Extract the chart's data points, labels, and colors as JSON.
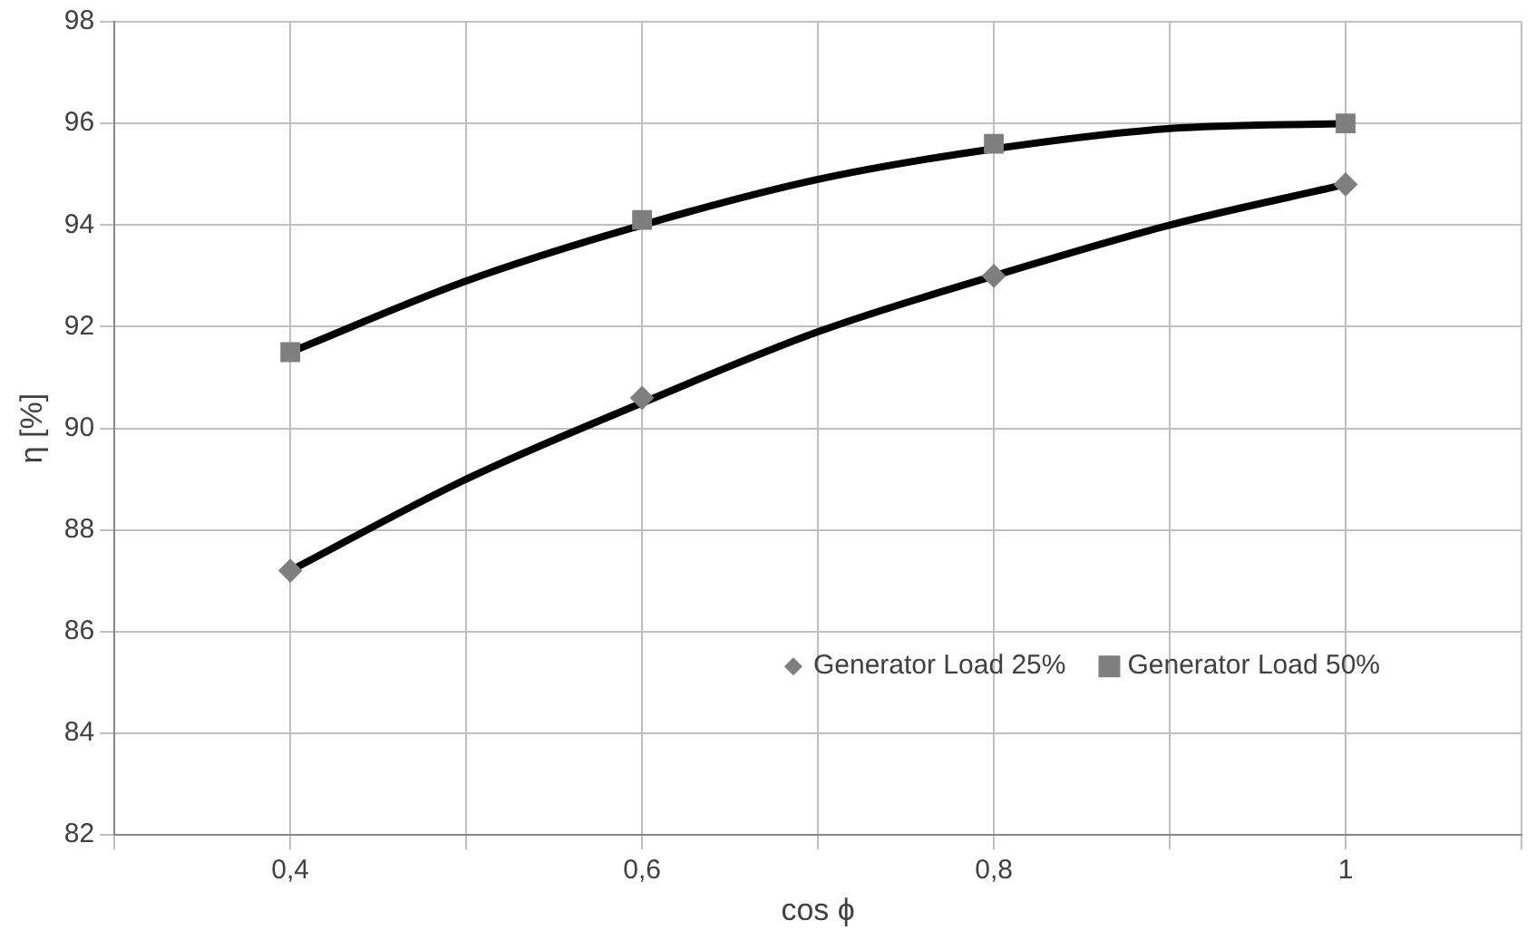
{
  "chart_data": {
    "type": "scatter",
    "xlabel": "cos ϕ",
    "ylabel": "η [%]",
    "xlim": [
      0.3,
      1.1
    ],
    "xticks": [
      {
        "value": 0.3,
        "label": null
      },
      {
        "value": 0.4,
        "label": "0,4"
      },
      {
        "value": 0.5,
        "label": null
      },
      {
        "value": 0.6,
        "label": "0,6"
      },
      {
        "value": 0.7,
        "label": null
      },
      {
        "value": 0.8,
        "label": "0,8"
      },
      {
        "value": 0.9,
        "label": null
      },
      {
        "value": 1,
        "label": "1"
      },
      {
        "value": 1.1,
        "label": null
      }
    ],
    "ylim": [
      82,
      98
    ],
    "yticks": [
      82,
      84,
      86,
      88,
      90,
      92,
      94,
      96,
      98
    ],
    "grid": true,
    "legend": "bottom right",
    "series": [
      {
        "name": "Generator Load 25%",
        "marker": "diamond",
        "color": "#7f7f7f",
        "x": [
          0.4,
          0.6,
          0.8,
          1
        ],
        "values": [
          87.2,
          90.6,
          93.0,
          94.8
        ]
      },
      {
        "name": "Generator Load 50%",
        "marker": "square",
        "color": "#7f7f7f",
        "x": [
          0.4,
          0.6,
          0.8,
          1
        ],
        "values": [
          91.5,
          94.1,
          95.6,
          96.0
        ]
      },
      {
        "type": "line",
        "marker": "none",
        "color": "#000000",
        "x": [
          0.4,
          0.5,
          0.6,
          0.7,
          0.8,
          0.9,
          1
        ],
        "values": [
          87.2,
          89.0,
          90.5,
          91.9,
          93.0,
          94.0,
          94.8
        ]
      },
      {
        "type": "line",
        "marker": "none",
        "color": "#000000",
        "x": [
          0.4,
          0.5,
          0.6,
          0.7,
          0.8,
          0.9,
          1
        ],
        "values": [
          91.5,
          92.9,
          94.0,
          94.9,
          95.5,
          95.9,
          96.0
        ]
      }
    ]
  }
}
